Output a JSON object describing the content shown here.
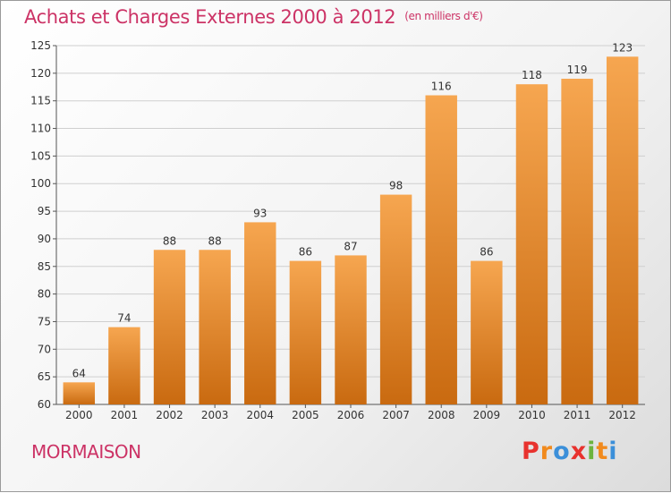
{
  "header": {
    "title": "Achats et Charges Externes 2000 à 2012",
    "unit": "(en milliers d'€)"
  },
  "footer": {
    "place": "MORMAISON",
    "logo_letters": [
      "P",
      "r",
      "o",
      "x",
      "i",
      "t",
      "i"
    ],
    "logo_colors": [
      "#e8322e",
      "#f18a1d",
      "#3b8fd9",
      "#e8322e",
      "#6cb43f",
      "#f18a1d",
      "#3b8fd9"
    ]
  },
  "chart_data": {
    "type": "bar",
    "categories": [
      "2000",
      "2001",
      "2002",
      "2003",
      "2004",
      "2005",
      "2006",
      "2007",
      "2008",
      "2009",
      "2010",
      "2011",
      "2012"
    ],
    "values": [
      64,
      74,
      88,
      88,
      93,
      86,
      87,
      98,
      116,
      86,
      118,
      119,
      123
    ],
    "ylim": [
      60,
      125
    ],
    "yticks": [
      60,
      65,
      70,
      75,
      80,
      85,
      90,
      95,
      100,
      105,
      110,
      115,
      120,
      125
    ],
    "grid": true,
    "colors": {
      "bar_light": "#f6a650",
      "bar_dark": "#c96a10",
      "text": "#333333",
      "grid": "#cfcfcf"
    }
  }
}
